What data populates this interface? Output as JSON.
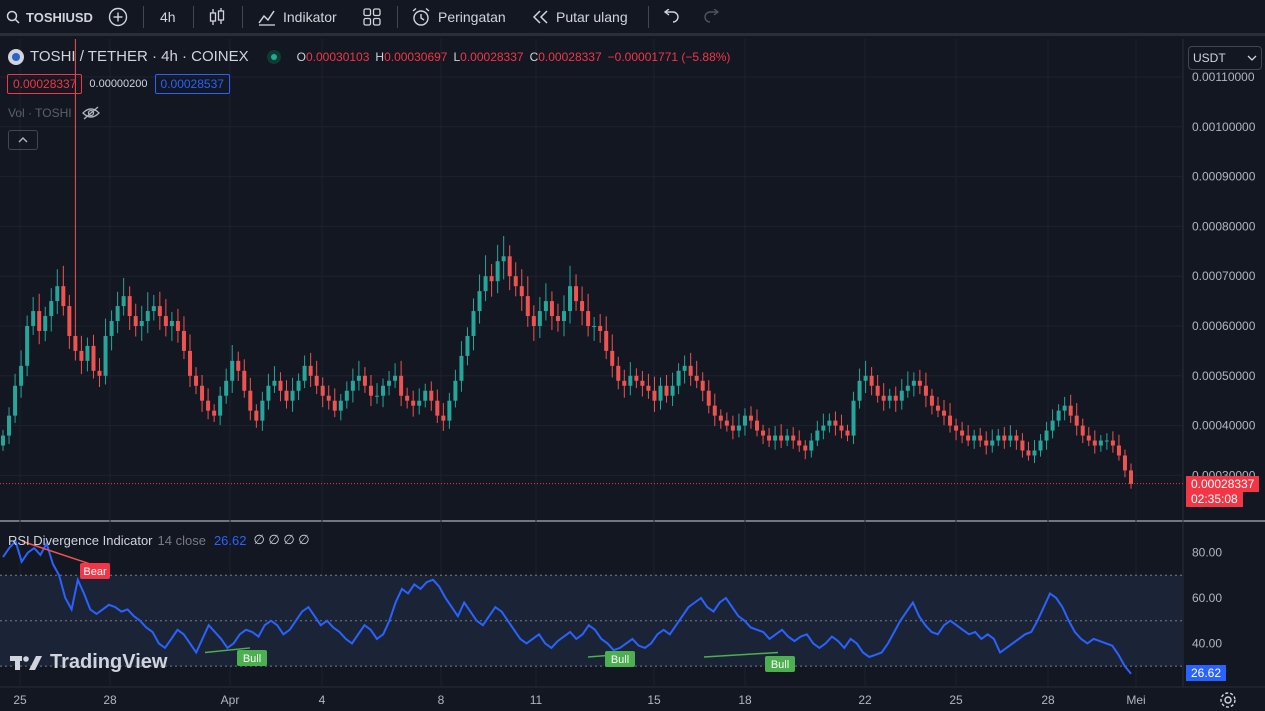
{
  "toolbar": {
    "symbol": "TOSHIUSD",
    "interval": "4h",
    "indicators": "Indikator",
    "alerts": "Peringatan",
    "replay": "Putar ulang"
  },
  "legend": {
    "title": "TOSHI / TETHER · 4h · COINEX",
    "o_label": "O",
    "o_val": "0.00030103",
    "h_label": "H",
    "h_val": "0.00030697",
    "l_label": "L",
    "l_val": "0.00028337",
    "c_label": "C",
    "c_val": "0.00028337",
    "change": "−0.00001771 (−5.88%)",
    "bid": "0.00028337",
    "spread": "0.00000200",
    "ask": "0.00028537",
    "vol": "Vol · TOSHI"
  },
  "currency": "USDT",
  "price_axis": [
    "0.00110000",
    "0.00100000",
    "0.00090000",
    "0.00080000",
    "0.00070000",
    "0.00060000",
    "0.00050000",
    "0.00040000",
    "0.00030000"
  ],
  "last_price": "0.00028337",
  "countdown": "02:35:08",
  "rsi": {
    "name": "RSI Divergence Indicator",
    "params": "14 close",
    "value": "26.62",
    "zeros": "∅ ∅ ∅ ∅",
    "axis": [
      "80.00",
      "60.00",
      "40.00"
    ],
    "bear_label": "Bear",
    "bull_label": "Bull"
  },
  "time_axis": [
    "25",
    "28",
    "Apr",
    "4",
    "8",
    "11",
    "15",
    "18",
    "22",
    "25",
    "28",
    "Mei"
  ],
  "brand": "TradingView",
  "colors": {
    "up": "#26a69a",
    "down": "#ef5350",
    "rsi": "#2962ff",
    "bg": "#131722"
  },
  "chart_data": {
    "type": "candlestick",
    "ylim": [
      0.00028,
      0.0011
    ],
    "closes": [
      0.00038,
      0.00042,
      0.00048,
      0.00052,
      0.0006,
      0.00063,
      0.00059,
      0.00062,
      0.00065,
      0.00068,
      0.00064,
      0.00058,
      0.00055,
      0.00053,
      0.00056,
      0.00051,
      0.0005,
      0.00058,
      0.00061,
      0.00064,
      0.00066,
      0.00062,
      0.0006,
      0.00061,
      0.00063,
      0.00064,
      0.00062,
      0.0006,
      0.00061,
      0.00059,
      0.00055,
      0.0005,
      0.00048,
      0.00045,
      0.00043,
      0.00042,
      0.00046,
      0.00049,
      0.00053,
      0.00051,
      0.00047,
      0.00043,
      0.00041,
      0.00045,
      0.00048,
      0.00049,
      0.00047,
      0.00045,
      0.00047,
      0.00049,
      0.00052,
      0.0005,
      0.00048,
      0.00046,
      0.00045,
      0.00043,
      0.00045,
      0.00047,
      0.00049,
      0.0005,
      0.00048,
      0.00046,
      0.00046,
      0.00048,
      0.00049,
      0.0005,
      0.00046,
      0.00045,
      0.00044,
      0.00045,
      0.00047,
      0.00045,
      0.00042,
      0.00041,
      0.00045,
      0.00049,
      0.00054,
      0.00058,
      0.00063,
      0.00067,
      0.0007,
      0.00069,
      0.00073,
      0.00074,
      0.0007,
      0.00068,
      0.00066,
      0.00062,
      0.0006,
      0.00063,
      0.00065,
      0.00062,
      0.00061,
      0.00063,
      0.00068,
      0.00065,
      0.00063,
      0.0006,
      0.0006,
      0.00059,
      0.00055,
      0.00052,
      0.00049,
      0.00048,
      0.0005,
      0.00049,
      0.00048,
      0.00047,
      0.00045,
      0.00048,
      0.00046,
      0.00048,
      0.00051,
      0.00052,
      0.0005,
      0.00049,
      0.00047,
      0.00044,
      0.00042,
      0.00041,
      0.0004,
      0.00039,
      0.0004,
      0.00042,
      0.00041,
      0.00039,
      0.00038,
      0.00037,
      0.00038,
      0.00037,
      0.00038,
      0.00037,
      0.00036,
      0.00035,
      0.00037,
      0.00039,
      0.0004,
      0.00041,
      0.0004,
      0.00039,
      0.00038,
      0.00045,
      0.00049,
      0.0005,
      0.00048,
      0.00046,
      0.00045,
      0.00046,
      0.00045,
      0.00047,
      0.00048,
      0.00049,
      0.00048,
      0.00046,
      0.00044,
      0.00043,
      0.00042,
      0.0004,
      0.00039,
      0.00038,
      0.00037,
      0.00038,
      0.00037,
      0.00036,
      0.00037,
      0.00038,
      0.00037,
      0.00038,
      0.00037,
      0.00035,
      0.00034,
      0.00035,
      0.00037,
      0.00039,
      0.00041,
      0.00043,
      0.00044,
      0.00042,
      0.0004,
      0.00038,
      0.00037,
      0.00036,
      0.00037,
      0.00037,
      0.00036,
      0.00034,
      0.00031,
      0.000283
    ]
  },
  "rsi_data": [
    78,
    82,
    85,
    76,
    80,
    82,
    79,
    84,
    75,
    70,
    60,
    55,
    68,
    62,
    55,
    53,
    55,
    57,
    56,
    54,
    55,
    52,
    50,
    47,
    45,
    40,
    38,
    42,
    46,
    44,
    40,
    36,
    42,
    48,
    45,
    42,
    38,
    40,
    44,
    46,
    45,
    43,
    48,
    50,
    48,
    44,
    46,
    50,
    54,
    56,
    52,
    48,
    50,
    47,
    45,
    42,
    40,
    44,
    48,
    46,
    42,
    44,
    50,
    58,
    64,
    62,
    66,
    64,
    67,
    68,
    65,
    60,
    56,
    52,
    58,
    54,
    50,
    48,
    52,
    56,
    54,
    50,
    46,
    42,
    40,
    42,
    44,
    40,
    38,
    41,
    43,
    45,
    42,
    44,
    48,
    46,
    42,
    40,
    37,
    38,
    40,
    42,
    39,
    38,
    40,
    44,
    46,
    44,
    48,
    52,
    56,
    58,
    60,
    56,
    54,
    58,
    60,
    56,
    52,
    50,
    47,
    46,
    45,
    42,
    44,
    46,
    43,
    41,
    43,
    44,
    40,
    38,
    40,
    43,
    41,
    38,
    42,
    40,
    36,
    34,
    35,
    36,
    40,
    45,
    50,
    54,
    58,
    52,
    48,
    45,
    44,
    48,
    50,
    48,
    46,
    44,
    45,
    42,
    44,
    42,
    36,
    38,
    40,
    42,
    44,
    45,
    50,
    56,
    62,
    60,
    56,
    50,
    45,
    42,
    40,
    42,
    41,
    40,
    39,
    35,
    30,
    26.62
  ]
}
